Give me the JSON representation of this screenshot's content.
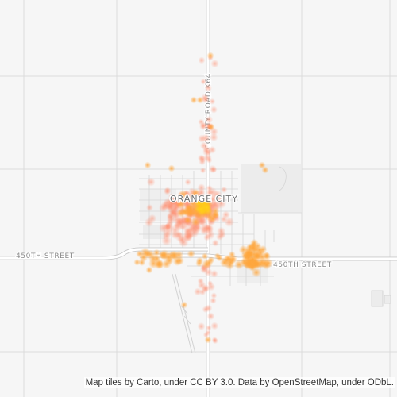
{
  "map": {
    "city_label": "ORANGE CITY",
    "roads": {
      "west_street": "450TH STREET",
      "east_street": "450TH STREET",
      "county_road": "COUNTY ROAD K64"
    },
    "attribution": "Map tiles by Carto, under CC BY 3.0. Data by OpenStreetMap, under ODbL.",
    "colors": {
      "background": "#f6f6f6",
      "grid_road": "#dcdcdc",
      "major_road": "#ffffff",
      "major_road_casing": "#c9c9c9",
      "landuse": "#e8e8e8",
      "heat_low": "#ff8a6b",
      "heat_mid": "#ffa040",
      "heat_high": "#ffcc1a"
    }
  }
}
